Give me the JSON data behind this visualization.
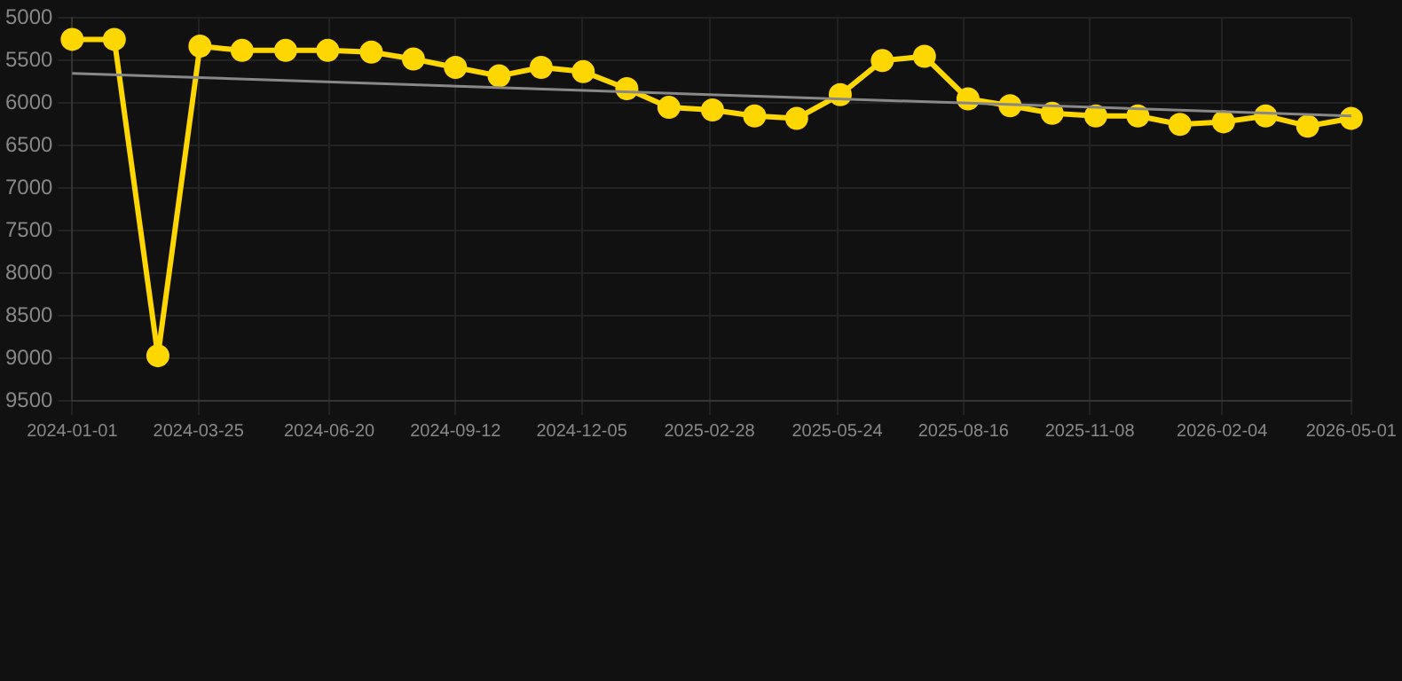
{
  "chart_data": {
    "type": "line",
    "x": [
      "2024-01-01",
      "2024-01-29",
      "2024-02-27",
      "2024-03-26",
      "2024-04-23",
      "2024-05-22",
      "2024-06-19",
      "2024-07-18",
      "2024-08-15",
      "2024-09-12",
      "2024-10-11",
      "2024-11-08",
      "2024-12-06",
      "2025-01-04",
      "2025-02-01",
      "2025-03-02",
      "2025-03-30",
      "2025-04-27",
      "2025-05-26",
      "2025-06-23",
      "2025-07-21",
      "2025-08-19",
      "2025-09-16",
      "2025-10-14",
      "2025-11-12",
      "2025-12-10",
      "2026-01-07",
      "2026-02-05",
      "2026-03-05",
      "2026-04-02",
      "2026-05-01"
    ],
    "series": [
      {
        "color": "#ffd700",
        "marker": "circle",
        "values": [
          5250,
          5250,
          8970,
          5330,
          5380,
          5380,
          5380,
          5400,
          5480,
          5580,
          5680,
          5580,
          5630,
          5830,
          6050,
          6080,
          6150,
          6180,
          5900,
          5500,
          5450,
          5950,
          6030,
          6120,
          6150,
          6150,
          6250,
          6220,
          6150,
          6270,
          6180
        ]
      },
      {
        "type": "line",
        "color": "#888888",
        "marker": "none",
        "x": [
          "2024-01-01",
          "2026-05-01"
        ],
        "values": [
          5650,
          6150
        ]
      }
    ],
    "ylim": [
      9500,
      5000
    ],
    "yticks": [
      5000,
      5500,
      6000,
      6500,
      7000,
      7500,
      8000,
      8500,
      9000,
      9500
    ],
    "xlim": [
      "2024-01-01",
      "2026-05-01"
    ],
    "xticks": [
      "2024-01-01",
      "2024-03-25",
      "2024-06-20",
      "2024-09-12",
      "2024-12-05",
      "2025-02-28",
      "2025-05-24",
      "2025-08-16",
      "2025-11-08",
      "2026-02-04",
      "2026-05-01"
    ],
    "grid": true,
    "legend": false,
    "line_style": "solid"
  }
}
